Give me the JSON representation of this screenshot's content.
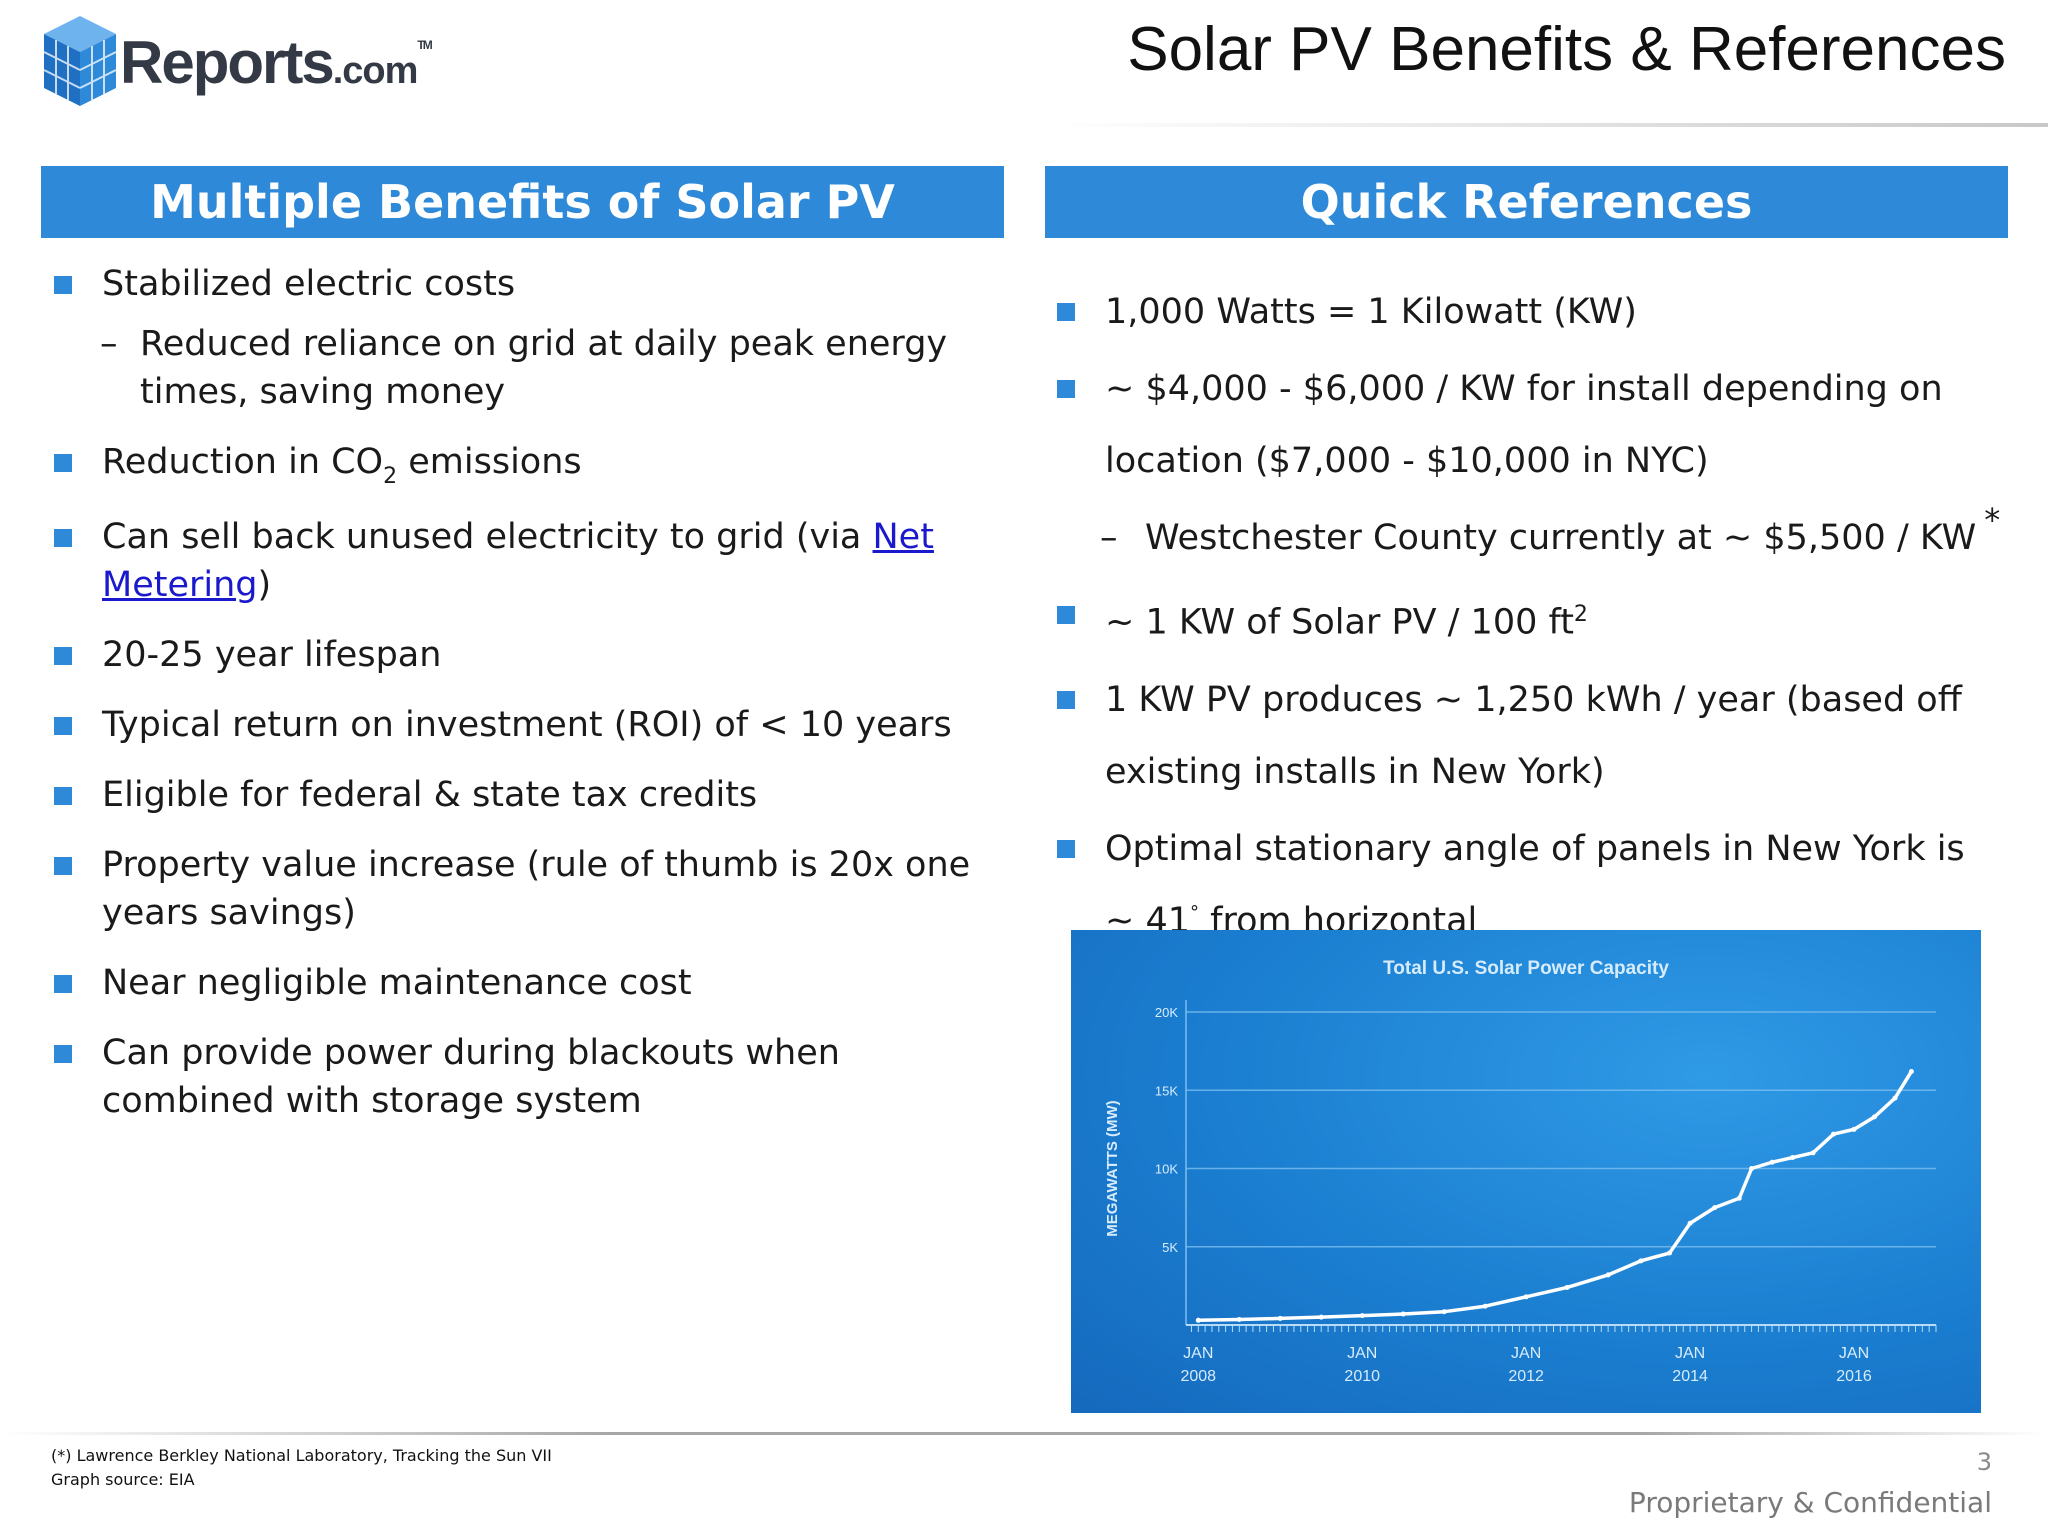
{
  "header": {
    "logo_text": "Reports",
    "logo_suffix": ".com",
    "logo_tm": "TM",
    "title": "Solar PV Benefits & References"
  },
  "left_panel": {
    "header": "Multiple Benefits of Solar PV",
    "items": [
      {
        "text": "Stabilized electric costs"
      },
      {
        "text": "Reduced reliance on grid at daily peak energy times, saving money"
      },
      {
        "text_before": "Reduction in CO",
        "subscript": "2",
        "text_after": " emissions"
      },
      {
        "text_before": "Can sell back unused electricity to grid (via ",
        "link": "Net Metering",
        "text_after": ")"
      },
      {
        "text": "20-25 year lifespan"
      },
      {
        "text": "Typical return on investment (ROI) of < 10 years"
      },
      {
        "text": "Eligible for federal & state tax credits"
      },
      {
        "text": "Property value increase (rule of thumb is 20x one years savings)"
      },
      {
        "text": "Near negligible maintenance cost"
      },
      {
        "text": "Can provide power during blackouts when combined with storage system"
      }
    ]
  },
  "right_panel": {
    "header": "Quick References",
    "items": [
      {
        "text": "1,000 Watts = 1 Kilowatt (KW)"
      },
      {
        "text": "~ $4,000 - $6,000 / KW for install depending on location ($7,000 - $10,000 in NYC)"
      },
      {
        "text": "Westchester County currently at ~ $5,500 / KW",
        "marker": "*"
      },
      {
        "text": "~ 1 KW of Solar PV / 100 ft",
        "superscript": "2"
      },
      {
        "text": "1 KW PV produces ~ 1,250 kWh / year (based off existing installs in New York)"
      },
      {
        "text": "Optimal stationary angle of panels in New York is ~ 41",
        "degree": "°",
        "text_after": " from horizontal"
      }
    ]
  },
  "chart_data": {
    "type": "line",
    "title": "Total U.S. Solar Power Capacity",
    "ylabel": "MEGAWATTS (MW)",
    "xlabel": "",
    "ylim": [
      0,
      20000
    ],
    "y_ticks": [
      {
        "value": 5000,
        "label": "5K"
      },
      {
        "value": 10000,
        "label": "10K"
      },
      {
        "value": 15000,
        "label": "15K"
      },
      {
        "value": 20000,
        "label": "20K"
      }
    ],
    "x_ticks": [
      {
        "value": 2008,
        "label": [
          "JAN",
          "2008"
        ]
      },
      {
        "value": 2010,
        "label": [
          "JAN",
          "2010"
        ]
      },
      {
        "value": 2012,
        "label": [
          "JAN",
          "2012"
        ]
      },
      {
        "value": 2014,
        "label": [
          "JAN",
          "2014"
        ]
      },
      {
        "value": 2016,
        "label": [
          "JAN",
          "2016"
        ]
      }
    ],
    "xlim": [
      2007.85,
      2017.0
    ],
    "grid": true,
    "x": [
      2008.0,
      2008.5,
      2009.0,
      2009.5,
      2010.0,
      2010.5,
      2011.0,
      2011.5,
      2012.0,
      2012.5,
      2013.0,
      2013.4,
      2013.75,
      2014.0,
      2014.3,
      2014.6,
      2014.75,
      2015.0,
      2015.25,
      2015.5,
      2015.75,
      2016.0,
      2016.25,
      2016.5,
      2016.7
    ],
    "series": [
      {
        "values": [
          300,
          350,
          420,
          500,
          600,
          700,
          850,
          1200,
          1800,
          2400,
          3200,
          4100,
          4600,
          6500,
          7500,
          8100,
          10000,
          10400,
          10700,
          11000,
          12200,
          12500,
          13300,
          14500,
          16200
        ]
      }
    ],
    "colors": {
      "background": "#1b7ed0",
      "line": "#ffffff",
      "grid": "#7dbff0",
      "text": "#d6ecfd"
    }
  },
  "footer": {
    "footnote_1": "(*) Lawrence Berkley National Laboratory, Tracking the Sun VII",
    "footnote_2": "Graph source: EIA",
    "page_number": "3",
    "confidential": "Proprietary & Confidential"
  }
}
